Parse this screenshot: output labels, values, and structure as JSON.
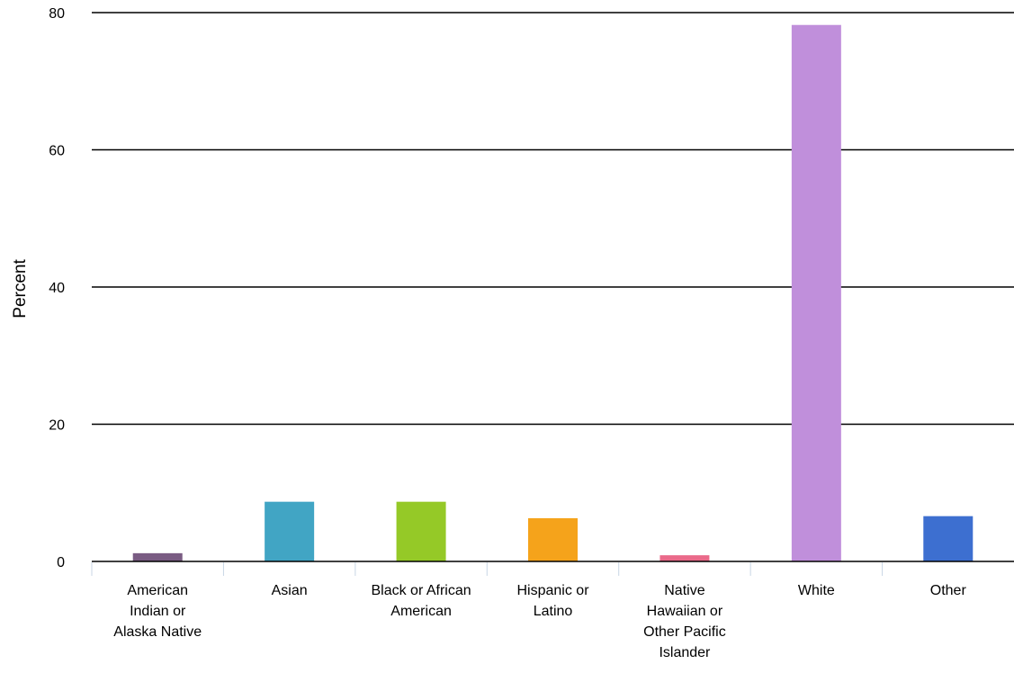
{
  "chart_data": {
    "type": "bar",
    "ylabel": "Percent",
    "xlabel": "",
    "ylim": [
      0,
      80
    ],
    "yticks": [
      0,
      20,
      40,
      60,
      80
    ],
    "grid": true,
    "categories": [
      "American Indian or Alaska Native",
      "Asian",
      "Black or African American",
      "Hispanic or Latino",
      "Native Hawaiian or Other Pacific Islander",
      "White",
      "Other"
    ],
    "category_lines": [
      [
        "American",
        "Indian or",
        "Alaska Native"
      ],
      [
        "Asian"
      ],
      [
        "Black or African",
        "American"
      ],
      [
        "Hispanic or",
        "Latino"
      ],
      [
        "Native",
        "Hawaiian or",
        "Other Pacific",
        "Islander"
      ],
      [
        "White"
      ],
      [
        "Other"
      ]
    ],
    "values": [
      1.2,
      8.7,
      8.7,
      6.3,
      0.9,
      78.2,
      6.6
    ],
    "colors": [
      "#7a5c83",
      "#41a5c4",
      "#95c927",
      "#f5a31b",
      "#ea6a8a",
      "#c08fdb",
      "#3d6fd0"
    ]
  }
}
